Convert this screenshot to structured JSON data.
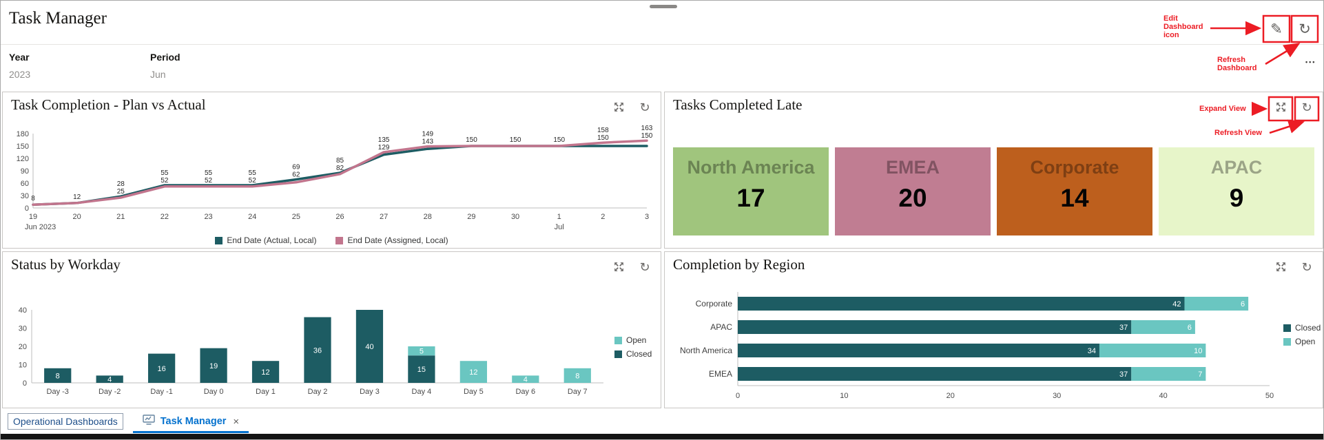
{
  "header": {
    "title": "Task Manager",
    "filters": [
      {
        "label": "Year",
        "value": "2023"
      },
      {
        "label": "Period",
        "value": "Jun"
      }
    ]
  },
  "icons": {
    "edit_pencil": "✎",
    "refresh_arrow": "↻",
    "overflow_dots": "•••",
    "close_x": "×"
  },
  "annotations": {
    "edit_dashboard": [
      "Edit",
      "Dashboard",
      "icon"
    ],
    "refresh_dashboard": [
      "Refresh",
      "Dashboard"
    ],
    "expand_view": "Expand View",
    "refresh_view": "Refresh View"
  },
  "panels": {
    "task_completion": {
      "title": "Task Completion - Plan vs Actual"
    },
    "tasks_completed_late": {
      "title": "Tasks Completed Late",
      "tiles": [
        {
          "region": "North America",
          "value": "17",
          "bg": "#a0c57d"
        },
        {
          "region": "EMEA",
          "value": "20",
          "bg": "#c07d92"
        },
        {
          "region": "Corporate",
          "value": "14",
          "bg": "#bd5f1d"
        },
        {
          "region": "APAC",
          "value": "9",
          "bg": "#e7f5c9"
        }
      ]
    },
    "status_by_workday": {
      "title": "Status by Workday"
    },
    "completion_by_region": {
      "title": "Completion by Region"
    }
  },
  "tabs": {
    "link": "Operational Dashboards",
    "active": "Task Manager"
  },
  "colors": {
    "dark_teal": "#1d5c63",
    "light_teal": "#6ac6c1",
    "pink": "#c2758d",
    "annotation_red": "#ec1c24",
    "active_tab_blue": "#0572ce"
  },
  "chart_data": [
    {
      "id": "task-completion",
      "type": "line",
      "title": "Task Completion - Plan vs Actual",
      "x": [
        "19",
        "20",
        "21",
        "22",
        "23",
        "24",
        "25",
        "26",
        "27",
        "28",
        "29",
        "30",
        "1",
        "2",
        "3"
      ],
      "x_sub": [
        {
          "index": 0,
          "label": "Jun 2023"
        },
        {
          "index": 12,
          "label": "Jul"
        }
      ],
      "ylim": [
        0,
        180
      ],
      "yticks": [
        0,
        30,
        60,
        90,
        120,
        150,
        180
      ],
      "series": [
        {
          "name": "End Date (Actual, Local)",
          "color": "#1d5c63",
          "values": [
            8,
            12,
            28,
            55,
            55,
            55,
            69,
            85,
            129,
            143,
            150,
            150,
            150,
            150,
            150
          ]
        },
        {
          "name": "End Date (Assigned, Local)",
          "color": "#c2758d",
          "values": [
            8,
            12,
            25,
            52,
            52,
            52,
            62,
            82,
            135,
            149,
            150,
            150,
            150,
            158,
            163
          ]
        }
      ]
    },
    {
      "id": "status-by-workday",
      "type": "bar",
      "title": "Status by Workday",
      "categories": [
        "Day -3",
        "Day -2",
        "Day -1",
        "Day 0",
        "Day 1",
        "Day 2",
        "Day 3",
        "Day 4",
        "Day 5",
        "Day 6",
        "Day 7"
      ],
      "ylim": [
        0,
        40
      ],
      "yticks": [
        0,
        10,
        20,
        30,
        40
      ],
      "series": [
        {
          "name": "Closed",
          "color": "#1d5c63",
          "values": [
            8,
            4,
            16,
            19,
            12,
            36,
            40,
            15,
            0,
            0,
            0
          ]
        },
        {
          "name": "Open",
          "color": "#6ac6c1",
          "values": [
            0,
            0,
            0,
            0,
            0,
            0,
            0,
            5,
            12,
            4,
            8
          ]
        }
      ],
      "legend_order": [
        "Open",
        "Closed"
      ]
    },
    {
      "id": "completion-by-region",
      "type": "hbar",
      "title": "Completion by Region",
      "categories": [
        "Corporate",
        "APAC",
        "North America",
        "EMEA"
      ],
      "xlim": [
        0,
        50
      ],
      "xticks": [
        0,
        10,
        20,
        30,
        40,
        50
      ],
      "series": [
        {
          "name": "Closed",
          "color": "#1d5c63",
          "values": [
            42,
            37,
            34,
            37
          ]
        },
        {
          "name": "Open",
          "color": "#6ac6c1",
          "values": [
            6,
            6,
            10,
            7
          ]
        }
      ],
      "legend_order": [
        "Closed",
        "Open"
      ]
    }
  ]
}
